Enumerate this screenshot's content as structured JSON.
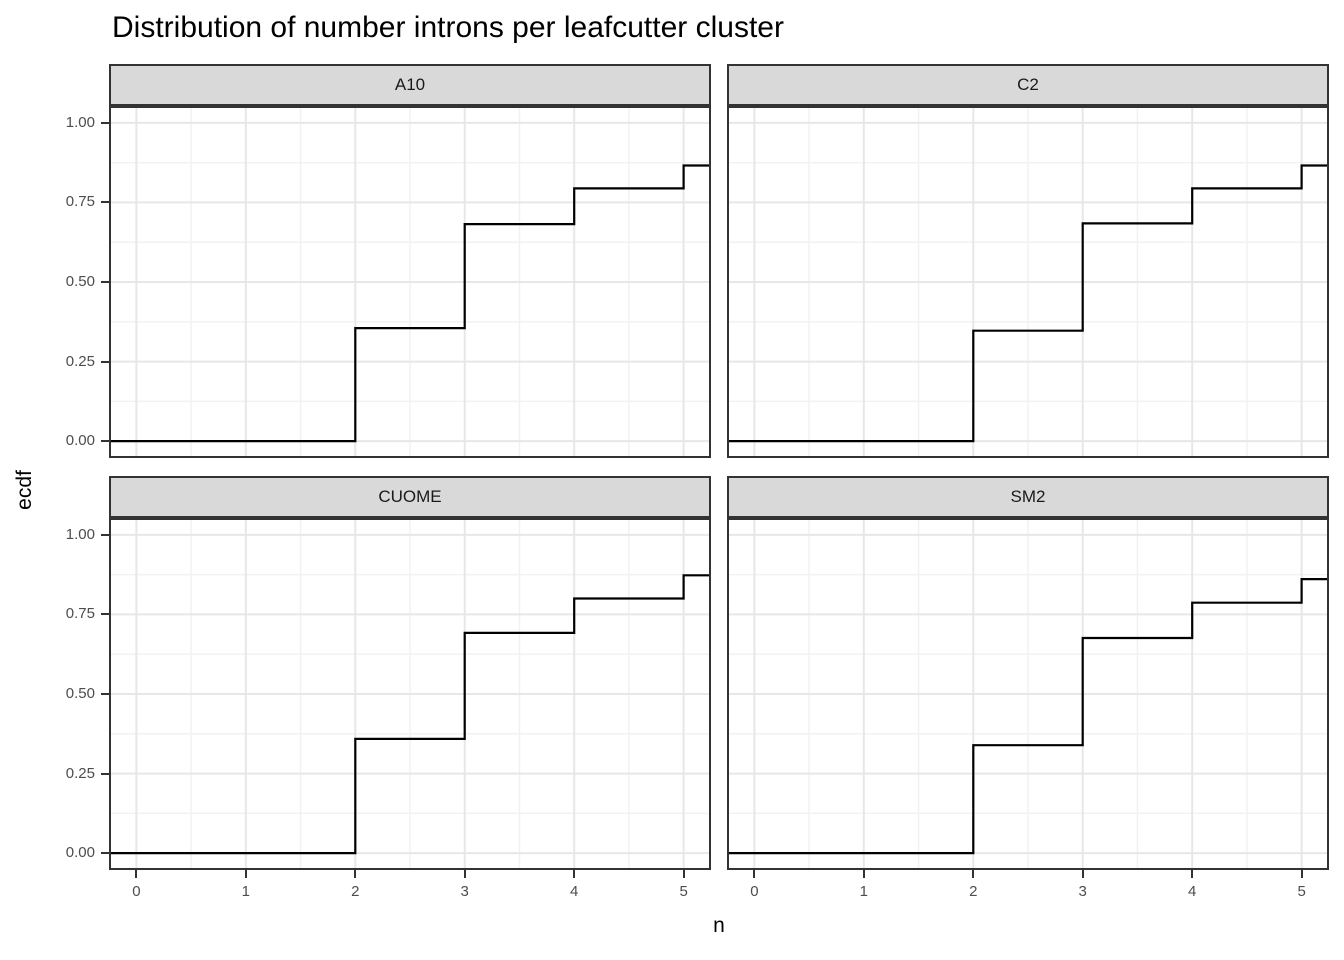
{
  "title": "Distribution of number introns per leafcutter cluster",
  "x_axis": {
    "label": "n",
    "tick_labels": [
      "0",
      "1",
      "2",
      "3",
      "4",
      "5"
    ],
    "tick_values": [
      0,
      1,
      2,
      3,
      4,
      5
    ],
    "minor_breaks": [
      0.5,
      1.5,
      2.5,
      3.5,
      4.5
    ],
    "domain": [
      -0.25,
      5.25
    ]
  },
  "y_axis": {
    "label": "ecdf",
    "tick_labels": [
      "1.00",
      "0.75",
      "0.50",
      "0.25",
      "0.00"
    ],
    "tick_values": [
      1.0,
      0.75,
      0.5,
      0.25,
      0.0
    ],
    "minor_breaks": [
      0.125,
      0.375,
      0.625,
      0.875
    ],
    "domain": [
      -0.053,
      1.053
    ]
  },
  "colors": {
    "background": "#ffffff",
    "panel_background": "#ffffff",
    "panel_border": "#333333",
    "grid_major": "#e7e7e7",
    "grid_minor": "#f2f2f2",
    "strip_background": "#d9d9d9",
    "strip_border": "#333333",
    "step_line": "#000000",
    "axis_text": "#4d4d4d",
    "tick_mark": "#333333",
    "title_text": "#000000"
  },
  "chart_data": {
    "type": "line",
    "variant": "step-ecdf",
    "title": "Distribution of number introns per leafcutter cluster",
    "xlabel": "n",
    "ylabel": "ecdf",
    "xlim": [
      -0.25,
      5.25
    ],
    "ylim": [
      -0.053,
      1.053
    ],
    "grid": "on",
    "legend": "none",
    "facet_layout": "2x2",
    "facets": [
      {
        "label": "A10",
        "x": [
          2,
          3,
          4,
          5
        ],
        "ecdf": [
          0.355,
          0.682,
          0.794,
          0.866
        ],
        "baseline": 0.0
      },
      {
        "label": "C2",
        "x": [
          2,
          3,
          4,
          5
        ],
        "ecdf": [
          0.347,
          0.684,
          0.794,
          0.866
        ],
        "baseline": 0.0
      },
      {
        "label": "CUOME",
        "x": [
          2,
          3,
          4,
          5
        ],
        "ecdf": [
          0.359,
          0.692,
          0.8,
          0.873
        ],
        "baseline": 0.0
      },
      {
        "label": "SM2",
        "x": [
          2,
          3,
          4,
          5
        ],
        "ecdf": [
          0.339,
          0.676,
          0.787,
          0.861
        ],
        "baseline": 0.0
      }
    ]
  }
}
